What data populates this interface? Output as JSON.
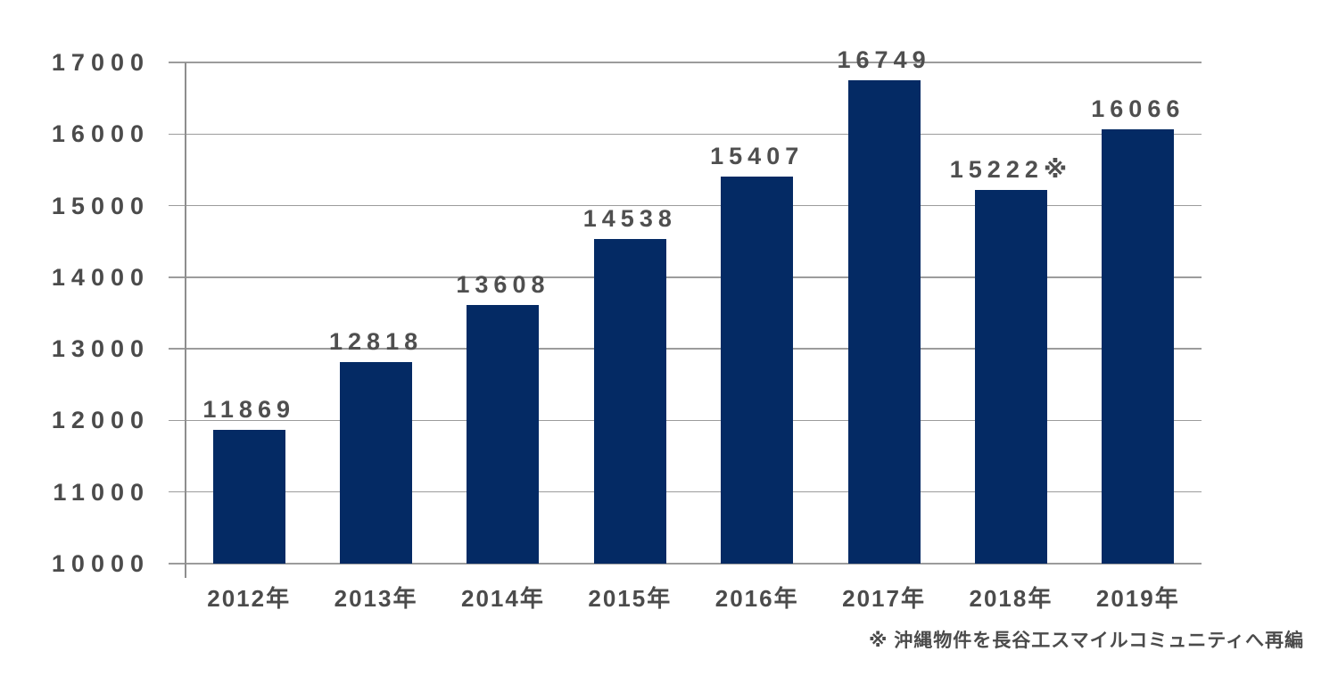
{
  "chart_data": {
    "type": "bar",
    "title": "",
    "categories": [
      "2012年",
      "2013年",
      "2014年",
      "2015年",
      "2016年",
      "2017年",
      "2018年",
      "2019年"
    ],
    "values": [
      11869,
      12818,
      13608,
      14538,
      15407,
      16749,
      15222,
      16066
    ],
    "value_labels": [
      "11869",
      "12818",
      "13608",
      "14538",
      "15407",
      "16749",
      "15222※",
      "16066"
    ],
    "xlabel": "",
    "ylabel": "",
    "ylim": [
      10000,
      17000
    ],
    "yticks": [
      17000,
      16000,
      15000,
      14000,
      13000,
      12000,
      11000,
      10000
    ],
    "grid": "horizontal",
    "legend": "none",
    "bar_color": "#042a64",
    "grid_color": "#9c9c9c",
    "axis_color": "#8e8e8e",
    "text_color": "#4b4b4b",
    "footnote": "※ 沖縄物件を長谷工スマイルコミュニティへ再編"
  }
}
